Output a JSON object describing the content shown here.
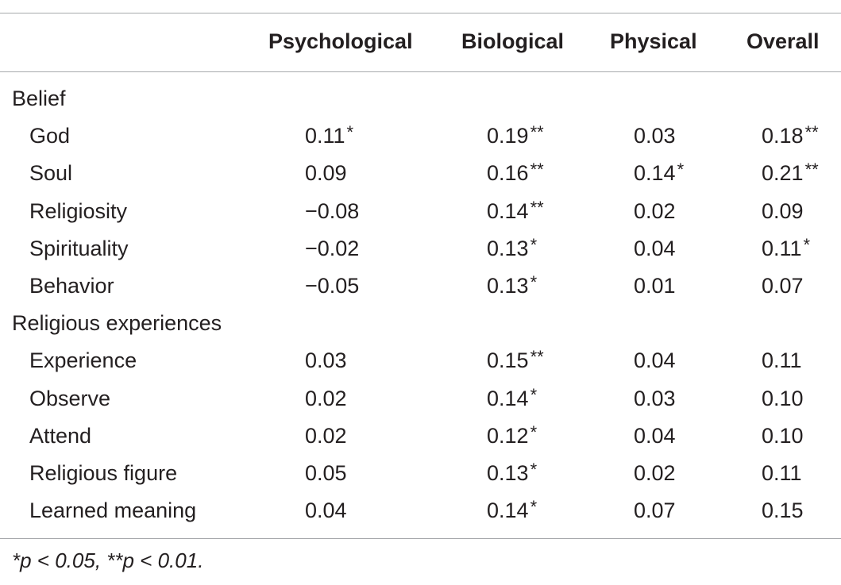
{
  "table": {
    "columns": [
      "",
      "Psychological",
      "Biological",
      "Physical",
      "Overall"
    ],
    "sections": [
      {
        "label": "Belief",
        "rows": [
          {
            "label": "God",
            "values": [
              {
                "num": "0.11",
                "sig": "*"
              },
              {
                "num": "0.19",
                "sig": "**"
              },
              {
                "num": "0.03",
                "sig": ""
              },
              {
                "num": "0.18",
                "sig": "**"
              }
            ]
          },
          {
            "label": "Soul",
            "values": [
              {
                "num": "0.09",
                "sig": ""
              },
              {
                "num": "0.16",
                "sig": "**"
              },
              {
                "num": "0.14",
                "sig": "*"
              },
              {
                "num": "0.21",
                "sig": "**"
              }
            ]
          },
          {
            "label": "Religiosity",
            "values": [
              {
                "num": "−0.08",
                "sig": ""
              },
              {
                "num": "0.14",
                "sig": "**"
              },
              {
                "num": "0.02",
                "sig": ""
              },
              {
                "num": "0.09",
                "sig": ""
              }
            ]
          },
          {
            "label": "Spirituality",
            "values": [
              {
                "num": "−0.02",
                "sig": ""
              },
              {
                "num": "0.13",
                "sig": "*"
              },
              {
                "num": "0.04",
                "sig": ""
              },
              {
                "num": "0.11",
                "sig": "*"
              }
            ]
          },
          {
            "label": "Behavior",
            "values": [
              {
                "num": "−0.05",
                "sig": ""
              },
              {
                "num": "0.13",
                "sig": "*"
              },
              {
                "num": "0.01",
                "sig": ""
              },
              {
                "num": "0.07",
                "sig": ""
              }
            ]
          }
        ]
      },
      {
        "label": "Religious experiences",
        "rows": [
          {
            "label": "Experience",
            "values": [
              {
                "num": "0.03",
                "sig": ""
              },
              {
                "num": "0.15",
                "sig": "**"
              },
              {
                "num": "0.04",
                "sig": ""
              },
              {
                "num": "0.11",
                "sig": ""
              }
            ]
          },
          {
            "label": "Observe",
            "values": [
              {
                "num": "0.02",
                "sig": ""
              },
              {
                "num": "0.14",
                "sig": "*"
              },
              {
                "num": "0.03",
                "sig": ""
              },
              {
                "num": "0.10",
                "sig": ""
              }
            ]
          },
          {
            "label": "Attend",
            "values": [
              {
                "num": "0.02",
                "sig": ""
              },
              {
                "num": "0.12",
                "sig": "*"
              },
              {
                "num": "0.04",
                "sig": ""
              },
              {
                "num": "0.10",
                "sig": ""
              }
            ]
          },
          {
            "label": "Religious figure",
            "values": [
              {
                "num": "0.05",
                "sig": ""
              },
              {
                "num": "0.13",
                "sig": "*"
              },
              {
                "num": "0.02",
                "sig": ""
              },
              {
                "num": "0.11",
                "sig": ""
              }
            ]
          },
          {
            "label": "Learned meaning",
            "values": [
              {
                "num": "0.04",
                "sig": ""
              },
              {
                "num": "0.14",
                "sig": "*"
              },
              {
                "num": "0.07",
                "sig": ""
              },
              {
                "num": "0.15",
                "sig": ""
              }
            ]
          }
        ]
      }
    ],
    "footnote": "*p < 0.05, **p < 0.01."
  }
}
